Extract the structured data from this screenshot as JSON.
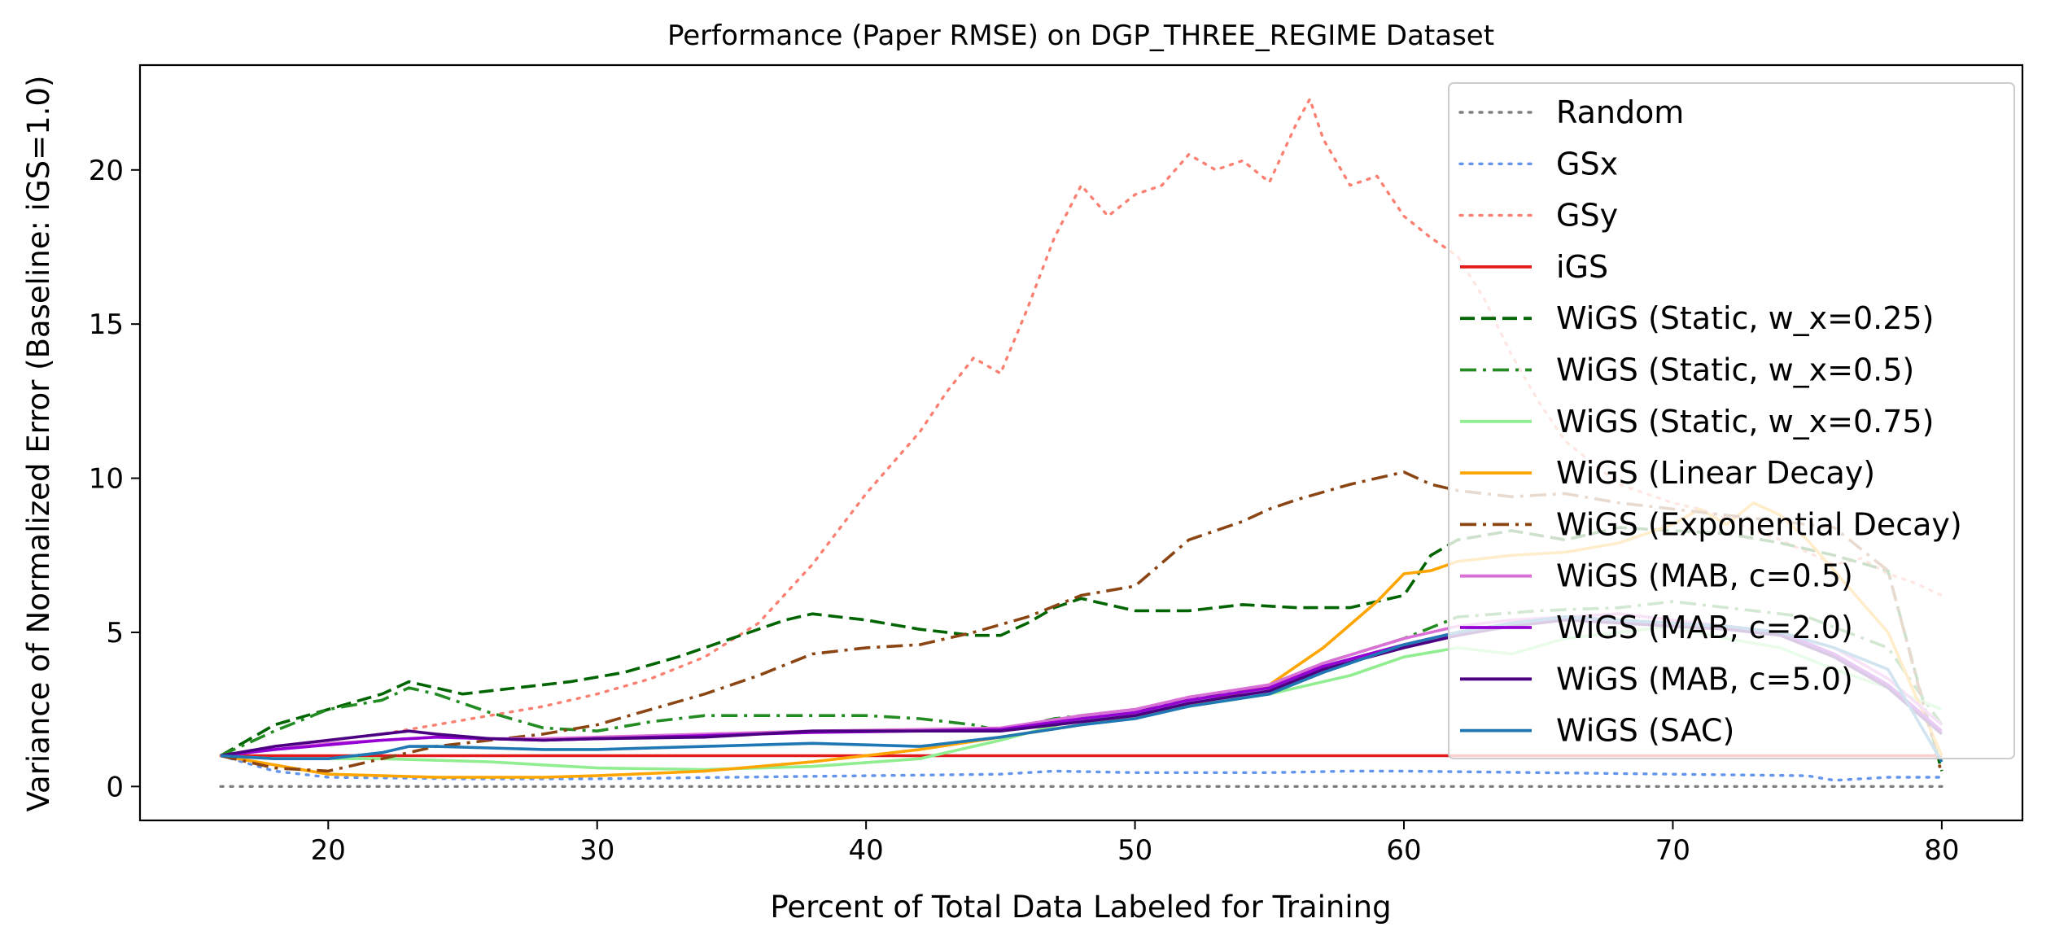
{
  "chart_data": {
    "type": "line",
    "title": "Performance (Paper RMSE) on DGP_THREE_REGIME Dataset",
    "xlabel": "Percent of Total Data Labeled for Training",
    "ylabel": "Variance of Normalized Error (Baseline: iGS=1.0)",
    "xlim": [
      13,
      83
    ],
    "ylim": [
      -1.1,
      23.4
    ],
    "xticks": [
      20,
      30,
      40,
      50,
      60,
      70,
      80
    ],
    "yticks": [
      0,
      5,
      10,
      15,
      20
    ],
    "grid": false,
    "legend_position": "top-right",
    "series": [
      {
        "name": "Random",
        "color": "#808080",
        "style": "dotted",
        "x": [
          16,
          80
        ],
        "y": [
          0,
          0
        ]
      },
      {
        "name": "GSx",
        "color": "#6495ed",
        "style": "dotted",
        "x": [
          16,
          18,
          20,
          25,
          30,
          35,
          40,
          45,
          47,
          50,
          55,
          58,
          60,
          65,
          70,
          75,
          76,
          78,
          80
        ],
        "y": [
          1.0,
          0.5,
          0.3,
          0.25,
          0.25,
          0.3,
          0.35,
          0.4,
          0.5,
          0.45,
          0.45,
          0.5,
          0.5,
          0.45,
          0.4,
          0.35,
          0.2,
          0.3,
          0.3
        ]
      },
      {
        "name": "GSy",
        "color": "#fa8072",
        "style": "dotted",
        "x": [
          16,
          18,
          20,
          22,
          24,
          26,
          28,
          30,
          32,
          34,
          36,
          38,
          40,
          42,
          43,
          44,
          45,
          46,
          47,
          48,
          49,
          50,
          51,
          52,
          53,
          54,
          55,
          56,
          56.5,
          57,
          58,
          59,
          60,
          61,
          62,
          63,
          64,
          65,
          66,
          67,
          68,
          69,
          70,
          71,
          72,
          73,
          74,
          75,
          76,
          77,
          78,
          79,
          80
        ],
        "y": [
          1.0,
          1.3,
          1.5,
          1.7,
          2.0,
          2.3,
          2.6,
          3.0,
          3.5,
          4.2,
          5.3,
          7.2,
          9.5,
          11.5,
          12.8,
          13.9,
          13.4,
          15.5,
          17.8,
          19.5,
          18.5,
          19.2,
          19.5,
          20.5,
          20.0,
          20.3,
          19.6,
          21.5,
          22.3,
          21.0,
          19.5,
          19.8,
          18.5,
          17.8,
          17.2,
          15.8,
          14.0,
          12.5,
          11.2,
          10.5,
          9.8,
          9.5,
          9.2,
          9.0,
          8.7,
          8.3,
          8.0,
          7.6,
          7.2,
          7.4,
          6.9,
          6.6,
          6.2
        ]
      },
      {
        "name": "iGS",
        "color": "#e31a1c",
        "style": "solid",
        "x": [
          16,
          80
        ],
        "y": [
          1.0,
          1.0
        ]
      },
      {
        "name": "WiGS (Static, w_x=0.25)",
        "color": "#006400",
        "style": "dashed",
        "x": [
          16,
          18,
          20,
          22,
          23,
          25,
          27,
          29,
          31,
          33,
          35,
          37,
          38,
          39,
          40,
          42,
          44,
          45,
          46,
          47,
          48,
          49,
          50,
          52,
          54,
          56,
          58,
          60,
          61,
          62,
          64,
          66,
          68,
          70,
          72,
          74,
          76,
          78,
          80
        ],
        "y": [
          1.0,
          2.0,
          2.5,
          3.0,
          3.4,
          3.0,
          3.2,
          3.4,
          3.7,
          4.2,
          4.8,
          5.4,
          5.6,
          5.5,
          5.4,
          5.1,
          4.9,
          4.9,
          5.3,
          5.8,
          6.1,
          5.9,
          5.7,
          5.7,
          5.9,
          5.8,
          5.8,
          6.2,
          7.5,
          8.0,
          8.3,
          8.0,
          8.4,
          8.3,
          8.2,
          7.9,
          7.5,
          7.0,
          0.5
        ]
      },
      {
        "name": "WiGS (Static, w_x=0.5)",
        "color": "#228b22",
        "style": "dashdot",
        "x": [
          16,
          18,
          20,
          22,
          23,
          24,
          26,
          28,
          30,
          32,
          34,
          36,
          38,
          40,
          42,
          44,
          45,
          47,
          50,
          52,
          55,
          57,
          60,
          62,
          65,
          68,
          70,
          72,
          75,
          78,
          80
        ],
        "y": [
          1.0,
          1.8,
          2.5,
          2.8,
          3.2,
          3.0,
          2.4,
          1.9,
          1.8,
          2.1,
          2.3,
          2.3,
          2.3,
          2.3,
          2.2,
          2.0,
          1.8,
          2.2,
          2.5,
          2.8,
          3.3,
          4.0,
          4.8,
          5.5,
          5.7,
          5.8,
          6.0,
          5.8,
          5.5,
          4.5,
          2.0
        ]
      },
      {
        "name": "WiGS (Static, w_x=0.75)",
        "color": "#90ee90",
        "style": "solid",
        "x": [
          16,
          18,
          20,
          22,
          24,
          26,
          28,
          30,
          34,
          38,
          42,
          45,
          48,
          50,
          52,
          55,
          58,
          60,
          62,
          64,
          66,
          68,
          70,
          72,
          74,
          76,
          78,
          80
        ],
        "y": [
          1.0,
          0.9,
          0.9,
          0.9,
          0.85,
          0.8,
          0.7,
          0.6,
          0.55,
          0.65,
          0.9,
          1.5,
          2.2,
          2.3,
          2.6,
          3.0,
          3.6,
          4.2,
          4.5,
          4.3,
          4.8,
          5.0,
          5.2,
          4.8,
          4.5,
          3.8,
          3.2,
          2.5
        ]
      },
      {
        "name": "WiGS (Linear Decay)",
        "color": "#ffa500",
        "style": "solid",
        "x": [
          16,
          18,
          20,
          22,
          24,
          26,
          28,
          30,
          34,
          38,
          42,
          45,
          48,
          50,
          52,
          55,
          57,
          59,
          60,
          61,
          62,
          64,
          66,
          68,
          70,
          71,
          72,
          73,
          74,
          75,
          76,
          77,
          78,
          80
        ],
        "y": [
          1.0,
          0.7,
          0.4,
          0.35,
          0.3,
          0.3,
          0.3,
          0.35,
          0.5,
          0.8,
          1.2,
          1.6,
          2.0,
          2.3,
          2.6,
          3.3,
          4.5,
          6.0,
          6.9,
          7.0,
          7.3,
          7.5,
          7.6,
          7.9,
          8.5,
          9.0,
          8.5,
          9.2,
          8.8,
          8.0,
          7.0,
          6.0,
          5.0,
          1.0
        ]
      },
      {
        "name": "WiGS (Exponential Decay)",
        "color": "#8b4513",
        "style": "dashdot",
        "x": [
          16,
          18,
          20,
          22,
          24,
          26,
          28,
          30,
          32,
          34,
          36,
          38,
          40,
          42,
          44,
          46,
          48,
          50,
          52,
          54,
          55,
          56,
          58,
          60,
          61,
          62,
          64,
          66,
          68,
          70,
          72,
          74,
          76,
          78,
          80
        ],
        "y": [
          1.0,
          0.6,
          0.5,
          0.9,
          1.3,
          1.5,
          1.7,
          2.0,
          2.5,
          3.0,
          3.6,
          4.3,
          4.5,
          4.6,
          5.0,
          5.5,
          6.2,
          6.5,
          8.0,
          8.6,
          9.0,
          9.3,
          9.8,
          10.2,
          9.8,
          9.6,
          9.4,
          9.5,
          9.2,
          9.0,
          8.8,
          8.6,
          8.4,
          7.0,
          0.4
        ]
      },
      {
        "name": "WiGS (MAB, c=0.5)",
        "color": "#da70d6",
        "style": "solid",
        "x": [
          16,
          18,
          20,
          22,
          24,
          26,
          28,
          30,
          34,
          38,
          42,
          45,
          48,
          50,
          52,
          55,
          57,
          60,
          62,
          64,
          66,
          68,
          70,
          72,
          74,
          76,
          78,
          80
        ],
        "y": [
          1.0,
          1.2,
          1.4,
          1.5,
          1.6,
          1.55,
          1.55,
          1.6,
          1.7,
          1.8,
          1.85,
          1.9,
          2.3,
          2.5,
          2.9,
          3.3,
          4.0,
          4.8,
          5.2,
          5.4,
          5.5,
          5.6,
          5.4,
          5.2,
          5.0,
          4.5,
          3.5,
          2.0
        ]
      },
      {
        "name": "WiGS (MAB, c=2.0)",
        "color": "#9400d3",
        "style": "solid",
        "x": [
          16,
          18,
          20,
          22,
          24,
          26,
          28,
          30,
          34,
          38,
          42,
          45,
          48,
          50,
          52,
          55,
          57,
          60,
          62,
          64,
          66,
          68,
          70,
          72,
          74,
          76,
          78,
          80
        ],
        "y": [
          1.0,
          1.2,
          1.35,
          1.5,
          1.6,
          1.55,
          1.5,
          1.55,
          1.65,
          1.75,
          1.8,
          1.85,
          2.2,
          2.4,
          2.8,
          3.2,
          3.9,
          4.6,
          5.0,
          5.3,
          5.5,
          5.4,
          5.3,
          5.2,
          5.0,
          4.3,
          3.3,
          1.8
        ]
      },
      {
        "name": "WiGS (MAB, c=5.0)",
        "color": "#4b0082",
        "style": "solid",
        "x": [
          16,
          18,
          20,
          22,
          23,
          24,
          26,
          28,
          30,
          34,
          38,
          42,
          45,
          48,
          50,
          52,
          55,
          57,
          60,
          62,
          64,
          66,
          68,
          70,
          72,
          74,
          76,
          78,
          80
        ],
        "y": [
          1.0,
          1.3,
          1.5,
          1.7,
          1.8,
          1.7,
          1.55,
          1.5,
          1.55,
          1.6,
          1.8,
          1.8,
          1.8,
          2.1,
          2.3,
          2.7,
          3.1,
          3.8,
          4.5,
          4.9,
          5.2,
          5.4,
          5.3,
          5.2,
          5.1,
          4.9,
          4.2,
          3.2,
          1.7
        ]
      },
      {
        "name": "WiGS (SAC)",
        "color": "#1f77b4",
        "style": "solid",
        "x": [
          16,
          18,
          20,
          22,
          23,
          24,
          26,
          28,
          30,
          34,
          38,
          42,
          45,
          48,
          50,
          52,
          55,
          57,
          60,
          62,
          64,
          66,
          68,
          70,
          72,
          74,
          76,
          78,
          80
        ],
        "y": [
          1.0,
          0.9,
          0.9,
          1.1,
          1.3,
          1.3,
          1.25,
          1.2,
          1.2,
          1.3,
          1.4,
          1.3,
          1.6,
          2.0,
          2.2,
          2.6,
          3.0,
          3.7,
          4.6,
          5.0,
          5.3,
          5.5,
          5.4,
          5.3,
          5.2,
          5.0,
          4.5,
          3.8,
          0.8
        ]
      }
    ]
  }
}
